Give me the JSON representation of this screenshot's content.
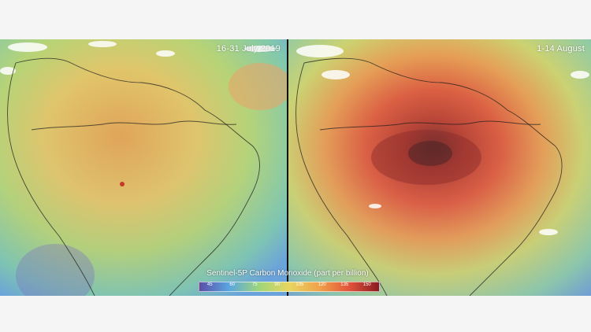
{
  "panels": {
    "left": {
      "date_label": "16-31 July 2019"
    },
    "right": {
      "date_label": "1-14 August"
    }
  },
  "legend": {
    "title": "Sentinel-5P Carbon Monoxide (part per billion)",
    "ticks": [
      "45",
      "60",
      "75",
      "90",
      "105",
      "120",
      "135",
      "150"
    ],
    "colors": [
      "#5a4fa8",
      "#5aa6e0",
      "#9fd67a",
      "#e8d660",
      "#f0a24a",
      "#e0553a",
      "#8a1a20"
    ]
  },
  "colors": {
    "low": "#6c8ed8",
    "mid": "#a9d07a",
    "elevated": "#e8c26a",
    "high": "#e4743e",
    "very_high": "#7a2a2a",
    "cloud": "#ffffff",
    "coastline": "#1a1a1a"
  }
}
